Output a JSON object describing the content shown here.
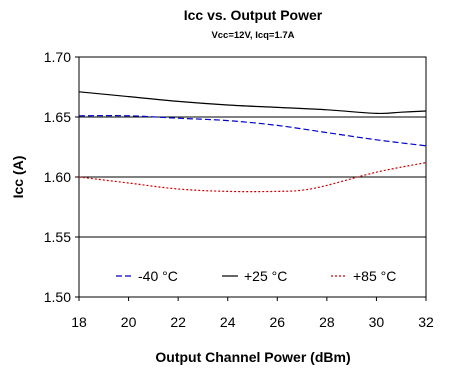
{
  "chart_data": {
    "type": "line",
    "title": "Icc vs. Output Power",
    "subtitle": "Vcc=12V, Icq=1.7A",
    "xlabel": "Output Channel Power (dBm)",
    "ylabel": "Icc (A)",
    "xlim": [
      18,
      32
    ],
    "ylim": [
      1.5,
      1.7
    ],
    "xticks": [
      "18",
      "20",
      "22",
      "24",
      "26",
      "28",
      "30",
      "32"
    ],
    "yticks": [
      "1.50",
      "1.55",
      "1.60",
      "1.65",
      "1.70"
    ],
    "grid": "horizontal",
    "legend_position": "inside-bottom",
    "series": [
      {
        "name": "-40 °C",
        "color": "#0000cc",
        "dash": "dashed",
        "x": [
          18,
          20,
          22,
          24,
          26,
          28,
          30,
          32
        ],
        "y": [
          1.651,
          1.651,
          1.649,
          1.647,
          1.643,
          1.637,
          1.631,
          1.626
        ]
      },
      {
        "name": "+25 °C",
        "color": "#000000",
        "dash": "solid",
        "x": [
          18,
          20,
          22,
          24,
          26,
          28,
          30,
          31,
          32
        ],
        "y": [
          1.671,
          1.667,
          1.663,
          1.66,
          1.658,
          1.656,
          1.653,
          1.654,
          1.655
        ]
      },
      {
        "name": "+85 °C",
        "color": "#cc0000",
        "dash": "dotted",
        "x": [
          18,
          20,
          22,
          24,
          26,
          27,
          28,
          30,
          32
        ],
        "y": [
          1.6,
          1.595,
          1.59,
          1.588,
          1.588,
          1.589,
          1.593,
          1.604,
          1.612
        ]
      }
    ]
  }
}
